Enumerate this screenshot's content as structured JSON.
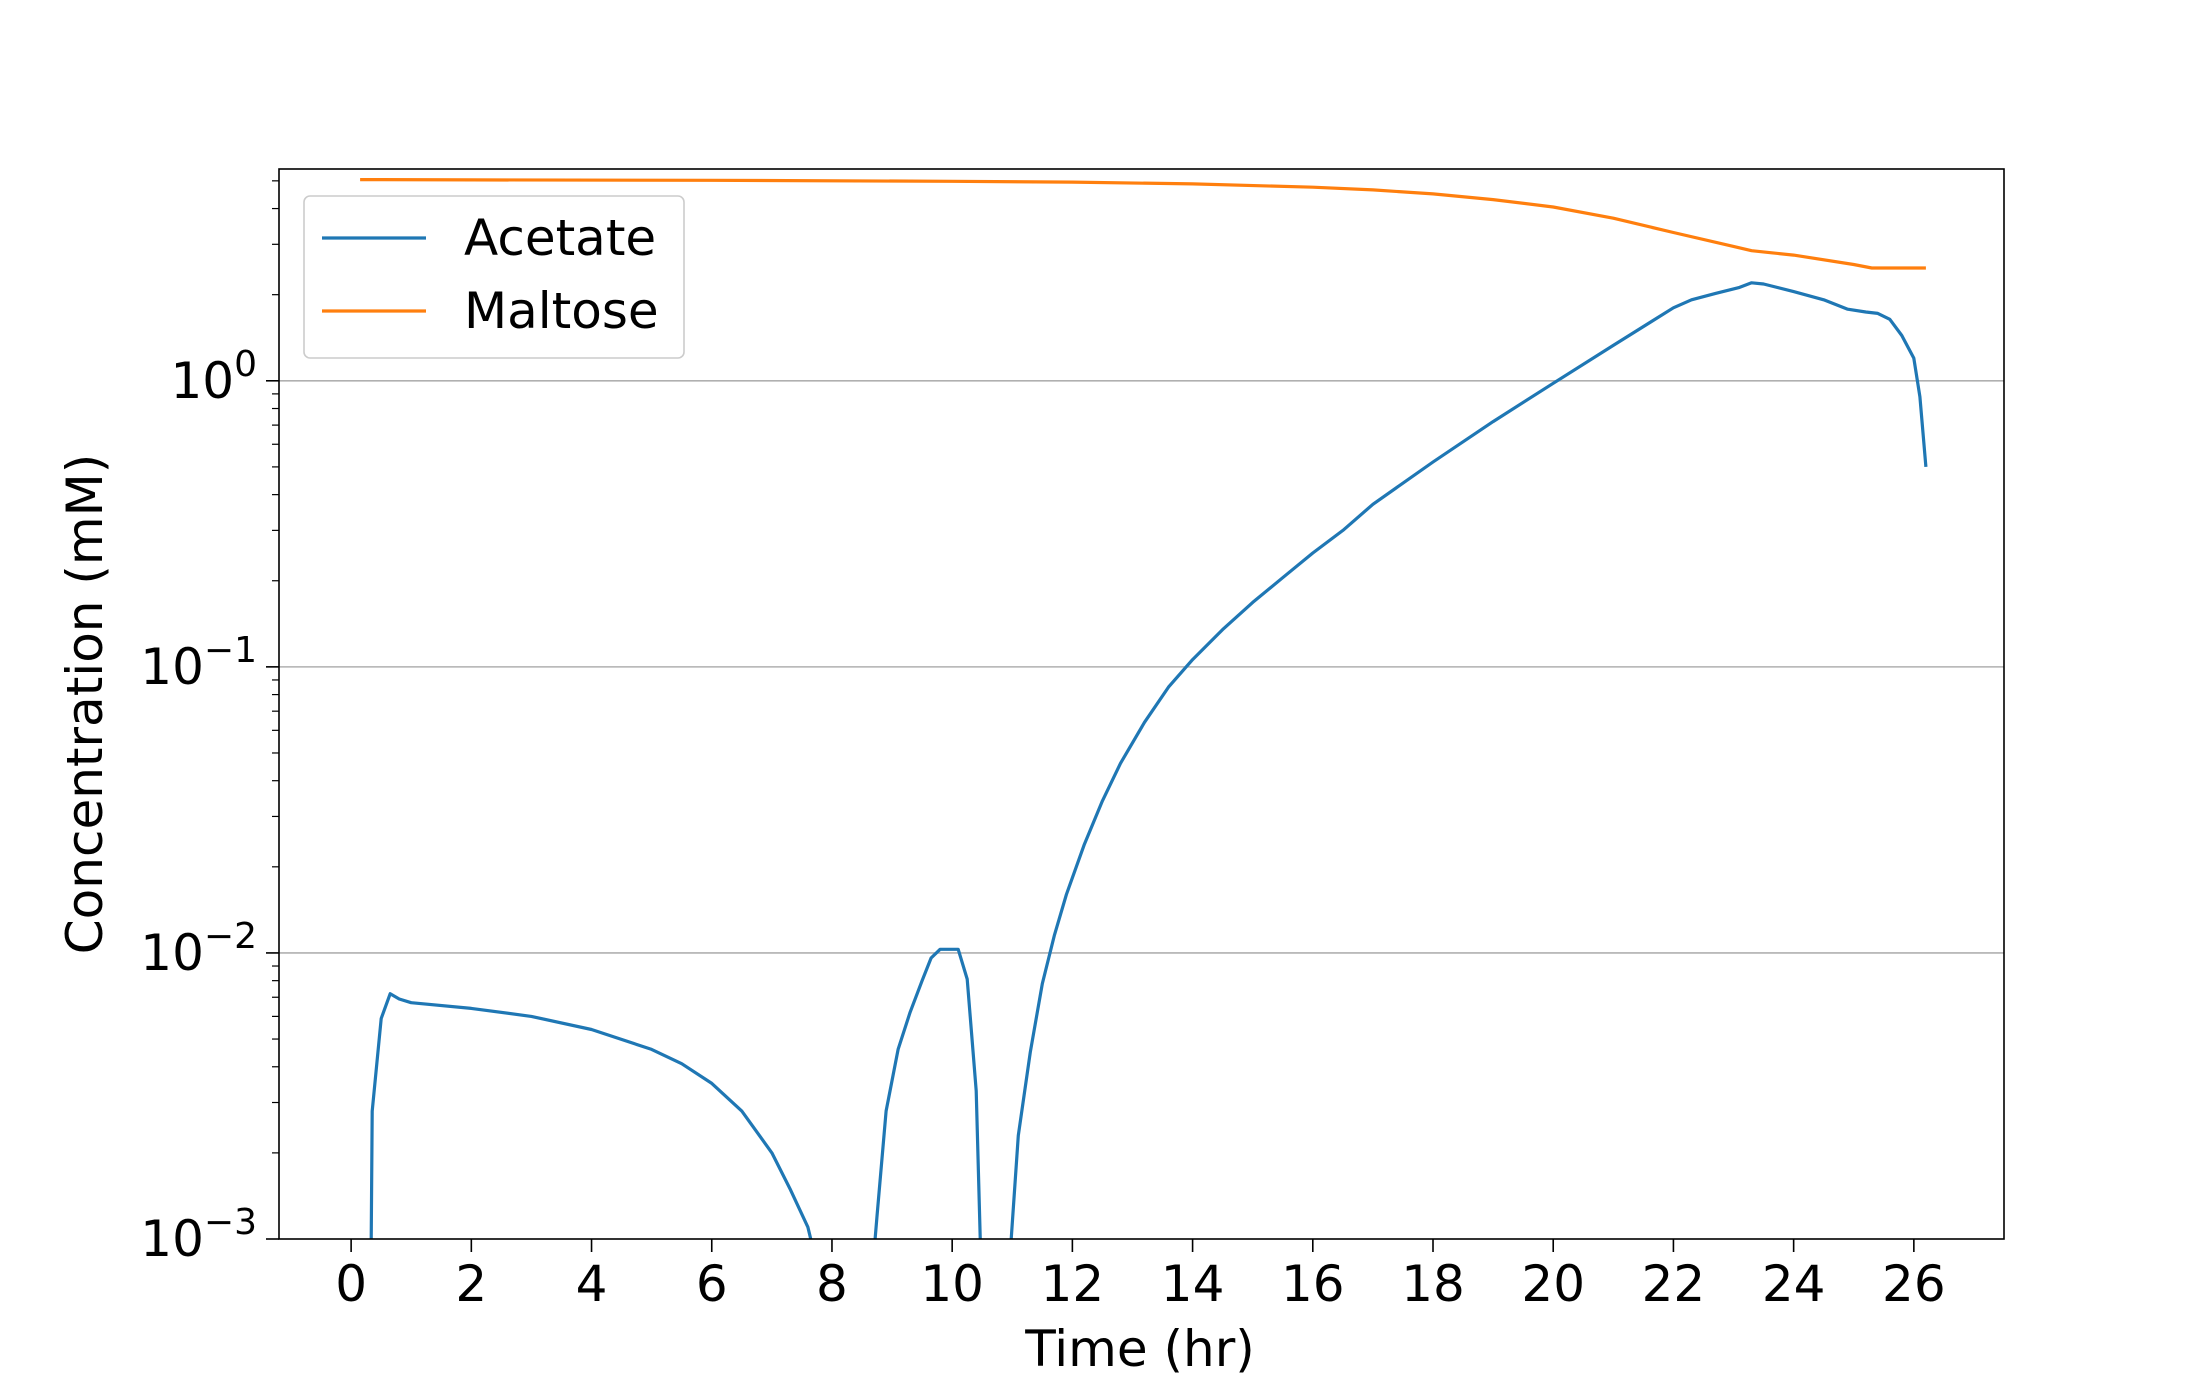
{
  "chart_data": {
    "type": "line",
    "title": "",
    "xlabel": "Time (hr)",
    "ylabel": "Concentration (mM)",
    "xlim": [
      -1.2,
      27.5
    ],
    "ylim": [
      0.001,
      5.5
    ],
    "yscale": "log",
    "grid": "y-major",
    "legend": "top-left",
    "x_ticks": [
      0,
      2,
      4,
      6,
      8,
      10,
      12,
      14,
      16,
      18,
      20,
      22,
      24,
      26
    ],
    "y_ticks": [
      {
        "value": 0.001,
        "base": "10",
        "exp": "−3"
      },
      {
        "value": 0.01,
        "base": "10",
        "exp": "−2"
      },
      {
        "value": 0.1,
        "base": "10",
        "exp": "−1"
      },
      {
        "value": 1,
        "base": "10",
        "exp": "0"
      }
    ],
    "series": [
      {
        "name": "Acetate",
        "color": "#1f77b4",
        "segments": [
          [
            [
              0.33,
              0.0008
            ],
            [
              0.35,
              0.0028
            ],
            [
              0.5,
              0.0059
            ],
            [
              0.65,
              0.0072
            ],
            [
              0.8,
              0.0069
            ],
            [
              1.0,
              0.0067
            ],
            [
              2.0,
              0.0064
            ],
            [
              3.0,
              0.006
            ],
            [
              4.0,
              0.0054
            ],
            [
              5.0,
              0.0046
            ],
            [
              5.5,
              0.0041
            ],
            [
              6.0,
              0.0035
            ],
            [
              6.5,
              0.0028
            ],
            [
              7.0,
              0.002
            ],
            [
              7.3,
              0.0015
            ],
            [
              7.6,
              0.0011
            ],
            [
              7.7,
              0.0009
            ]
          ],
          [
            [
              8.7,
              0.0009
            ],
            [
              8.75,
              0.0012
            ],
            [
              8.9,
              0.0028
            ],
            [
              9.1,
              0.0046
            ],
            [
              9.3,
              0.0062
            ],
            [
              9.5,
              0.008
            ],
            [
              9.65,
              0.0096
            ],
            [
              9.8,
              0.0103
            ],
            [
              10.0,
              0.0103
            ],
            [
              10.1,
              0.0103
            ],
            [
              10.25,
              0.0081
            ],
            [
              10.4,
              0.0033
            ],
            [
              10.48,
              0.0008
            ]
          ],
          [
            [
              10.95,
              0.0008
            ],
            [
              11.1,
              0.0023
            ],
            [
              11.3,
              0.0045
            ],
            [
              11.5,
              0.0078
            ],
            [
              11.7,
              0.0115
            ],
            [
              11.9,
              0.016
            ],
            [
              12.2,
              0.024
            ],
            [
              12.5,
              0.034
            ],
            [
              12.8,
              0.046
            ],
            [
              13.2,
              0.064
            ],
            [
              13.6,
              0.085
            ],
            [
              14.0,
              0.106
            ],
            [
              14.5,
              0.135
            ],
            [
              15.0,
              0.168
            ],
            [
              15.5,
              0.205
            ],
            [
              16.0,
              0.25
            ],
            [
              16.5,
              0.3
            ],
            [
              17.0,
              0.37
            ],
            [
              18.0,
              0.52
            ],
            [
              19.0,
              0.72
            ],
            [
              20.0,
              0.98
            ],
            [
              21.0,
              1.33
            ],
            [
              22.0,
              1.8
            ],
            [
              22.3,
              1.92
            ],
            [
              22.7,
              2.02
            ],
            [
              23.1,
              2.12
            ],
            [
              23.3,
              2.2
            ],
            [
              23.5,
              2.18
            ],
            [
              24.0,
              2.05
            ],
            [
              24.5,
              1.92
            ],
            [
              24.9,
              1.78
            ],
            [
              25.2,
              1.74
            ],
            [
              25.4,
              1.72
            ],
            [
              25.6,
              1.64
            ],
            [
              25.8,
              1.44
            ],
            [
              26.0,
              1.2
            ],
            [
              26.1,
              0.88
            ],
            [
              26.2,
              0.5
            ]
          ]
        ]
      },
      {
        "name": "Maltose",
        "color": "#ff7f0e",
        "segments": [
          [
            [
              0.15,
              5.05
            ],
            [
              2.0,
              5.04
            ],
            [
              6.0,
              5.02
            ],
            [
              10.0,
              4.98
            ],
            [
              12.0,
              4.95
            ],
            [
              14.0,
              4.88
            ],
            [
              16.0,
              4.75
            ],
            [
              17.0,
              4.65
            ],
            [
              18.0,
              4.5
            ],
            [
              19.0,
              4.3
            ],
            [
              20.0,
              4.05
            ],
            [
              21.0,
              3.7
            ],
            [
              22.0,
              3.3
            ],
            [
              23.0,
              2.95
            ],
            [
              23.3,
              2.85
            ],
            [
              24.0,
              2.75
            ],
            [
              25.0,
              2.55
            ],
            [
              25.3,
              2.48
            ],
            [
              25.6,
              2.48
            ],
            [
              26.2,
              2.48
            ]
          ]
        ]
      }
    ]
  }
}
